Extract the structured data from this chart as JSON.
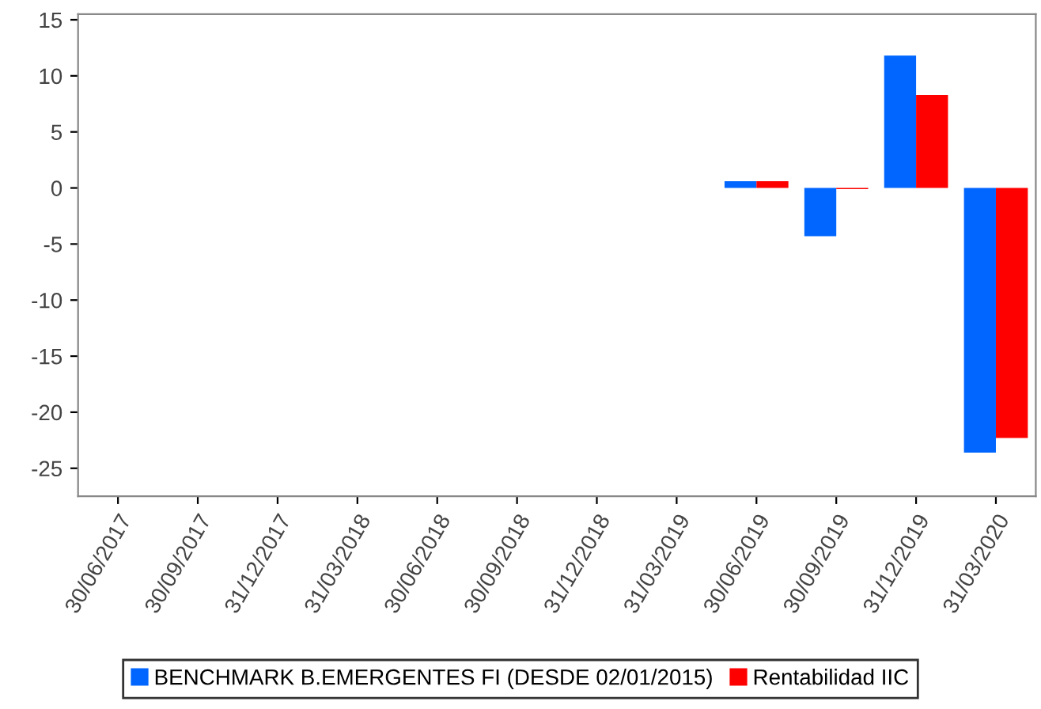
{
  "chart_data": {
    "type": "bar",
    "categories": [
      "30/06/2017",
      "30/09/2017",
      "31/12/2017",
      "31/03/2018",
      "30/06/2018",
      "30/09/2018",
      "31/12/2018",
      "31/03/2019",
      "30/06/2019",
      "30/09/2019",
      "31/12/2019",
      "31/03/2020"
    ],
    "series": [
      {
        "name": "BENCHMARK B.EMERGENTES FI (DESDE 02/01/2015)",
        "color": "#0066ff",
        "values": [
          null,
          null,
          null,
          null,
          null,
          null,
          null,
          null,
          0.6,
          -4.3,
          11.8,
          -23.6
        ]
      },
      {
        "name": "Rentabilidad IIC",
        "color": "#ff0000",
        "values": [
          null,
          null,
          null,
          null,
          null,
          null,
          null,
          null,
          0.6,
          -0.1,
          8.3,
          -22.3
        ]
      }
    ],
    "ylim": [
      -27.5,
      15.5
    ],
    "yticks": [
      -25,
      -20,
      -15,
      -10,
      -5,
      0,
      5,
      10,
      15
    ],
    "grid": false,
    "legend": "bottom"
  }
}
